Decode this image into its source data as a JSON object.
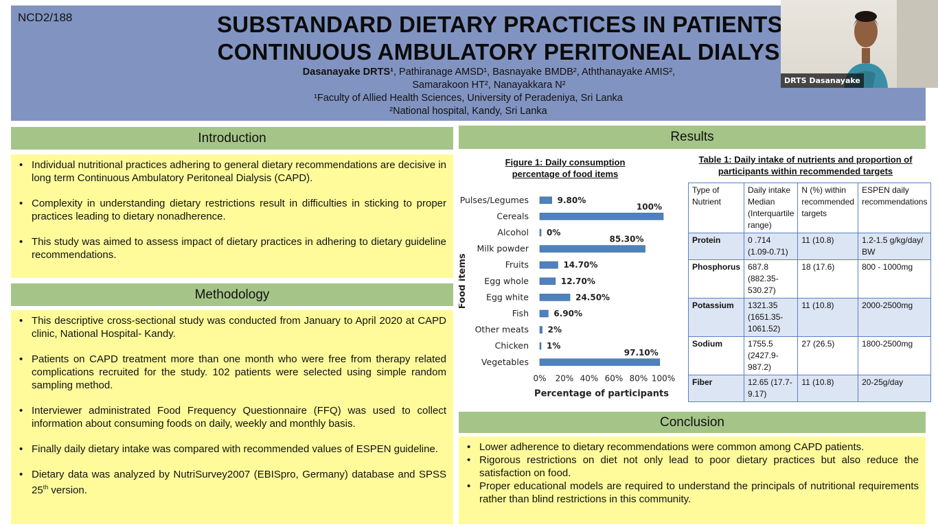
{
  "header": {
    "poster_id": "NCD2/188",
    "title_line1": "SUBSTANDARD DIETARY PRACTICES IN PATIENTS UNDERG",
    "title_line2": "CONTINUOUS AMBULATORY PERITONEAL DIALYSIS",
    "lead_author": "Dasanayake DRTS¹",
    "authors_line1_rest": ", Pathiranage AMSD¹, Basnayake BMDB², Aththanayake AMIS²,",
    "authors_line2": "Samarakoon HT², Nanayakkara N²",
    "affiliation1": "¹Faculty of Allied Health Sciences, University of Peradeniya, Sri Lanka",
    "affiliation2": "²National hospital, Kandy, Sri Lanka"
  },
  "webcam": {
    "name": "DRTS Dasanayake"
  },
  "introduction": {
    "heading": "Introduction",
    "bullets": [
      "Individual nutritional practices adhering to general dietary recommendations are decisive in long term Continuous Ambulatory Peritoneal Dialysis (CAPD).",
      "Complexity in understanding dietary restrictions result in difficulties in sticking to proper practices leading to dietary nonadherence.",
      "This study was aimed to assess impact of dietary practices in adhering to dietary guideline recommendations."
    ]
  },
  "methodology": {
    "heading": "Methodology",
    "bullets": [
      "This descriptive cross-sectional study was conducted from January to April 2020 at CAPD clinic, National Hospital- Kandy.",
      "Patients on CAPD treatment more than one month who were free from therapy related complications recruited for the study. 102 patients were selected using simple random sampling method.",
      "Interviewer administrated Food Frequency Questionnaire (FFQ) was used to collect information about consuming foods on daily, weekly and monthly basis.",
      "Finally daily dietary intake was compared with recommended values of ESPEN guideline."
    ],
    "last_bullet_pre": "Dietary data was analyzed by NutriSurvey2007 (EBISpro, Germany) database and SPSS 25",
    "last_bullet_sup": "th",
    "last_bullet_post": " version."
  },
  "results": {
    "heading": "Results",
    "figure_caption": "Figure 1: Daily consumption percentage of food items",
    "table_caption": "Table 1: Daily intake of nutrients and proportion of participants within recommended targets"
  },
  "chart_data": {
    "type": "bar",
    "orientation": "horizontal",
    "categories": [
      "Pulses/Legumes",
      "Cereals",
      "Alcohol",
      "Milk powder",
      "Fruits",
      "Egg whole",
      "Egg white",
      "Fish",
      "Other meats",
      "Chicken",
      "Vegetables"
    ],
    "values": [
      9.8,
      100,
      0,
      85.3,
      14.7,
      12.7,
      24.5,
      6.9,
      2,
      1,
      97.1
    ],
    "data_labels": [
      "9.80%",
      "100%",
      "0%",
      "85.30%",
      "14.70%",
      "12.70%",
      "24.50%",
      "6.90%",
      "2%",
      "1%",
      "97.10%"
    ],
    "xlabel": "Percentage of participants",
    "ylabel": "Food items",
    "xlim": [
      0,
      100
    ],
    "xticks": [
      "0%",
      "20%",
      "40%",
      "60%",
      "80%",
      "100%"
    ],
    "bar_color": "#4f81bd"
  },
  "table": {
    "headers": [
      "Type of Nutrient",
      "Daily intake Median (Interquartile range)",
      "N (%) within recommended targets",
      "ESPEN daily recommendations"
    ],
    "rows": [
      [
        "Protein",
        "0 .714 (1.09-0.71)",
        "11 (10.8)",
        "1.2-1.5 g/kg/day/ BW"
      ],
      [
        "Phosphorus",
        "687.8 (882.35-530.27)",
        "18 (17.6)",
        "800 - 1000mg"
      ],
      [
        "Potassium",
        "1321.35 (1651.35-1061.52)",
        "11 (10.8)",
        "2000-2500mg"
      ],
      [
        "Sodium",
        "1755.5 (2427.9-987.2)",
        "27 (26.5)",
        "1800-2500mg"
      ],
      [
        "Fiber",
        "12.65 (17.7-9.17)",
        "11 (10.8)",
        "20-25g/day"
      ]
    ]
  },
  "conclusion": {
    "heading": "Conclusion",
    "bullets": [
      "Lower adherence to dietary recommendations were common among CAPD patients.",
      "Rigorous restrictions on diet not only lead to poor dietary practices but also reduce the satisfaction on food.",
      "Proper educational models are required to understand the principals of nutritional requirements rather than blind restrictions in this community."
    ]
  },
  "colors": {
    "header_bg": "#8193c0",
    "section_head_bg": "#a5c588",
    "body_bg": "#fffb9a"
  }
}
